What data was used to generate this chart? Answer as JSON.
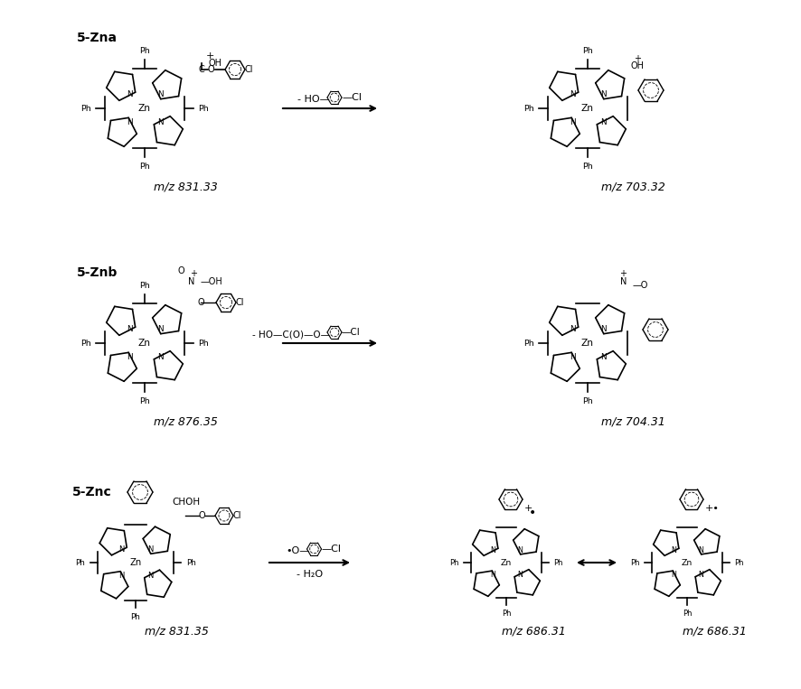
{
  "title": "",
  "background_color": "#ffffff",
  "rows": [
    {
      "label": "5-Zna",
      "left_mz": "m/z 831.33",
      "right_mz": "m/z 703.32",
      "arrow_text_top": "- HO—○—Cl",
      "arrow_text_bottom": ""
    },
    {
      "label": "5-Znb",
      "left_mz": "m/z 876.35",
      "right_mz": "m/z 704.31",
      "arrow_text_top": "- HO—C(O)—O—○—Cl",
      "arrow_text_bottom": ""
    },
    {
      "label": "5-Znc",
      "left_mz": "m/z 831.35",
      "right_mz_left": "m/z 686.31",
      "right_mz_right": "m/z 686.31",
      "arrow_text_top": "•O—○—Cl",
      "arrow_text_bottom": "- H₂O"
    }
  ]
}
